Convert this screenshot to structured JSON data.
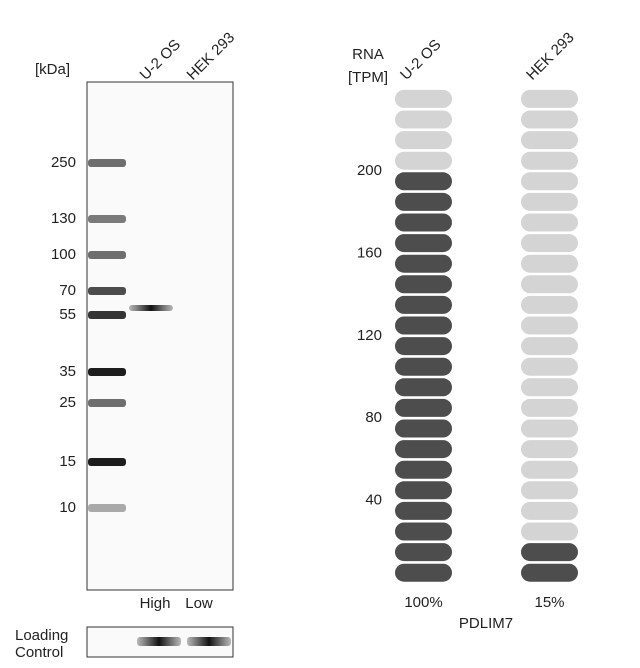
{
  "blot": {
    "unit_label": "[kDa]",
    "lanes": [
      "U-2 OS",
      "HEK 293"
    ],
    "markers": [
      "250",
      "130",
      "100",
      "70",
      "55",
      "35",
      "25",
      "15",
      "10"
    ],
    "lane_levels": [
      "High",
      "Low"
    ],
    "loading_label": [
      "Loading",
      "Control"
    ]
  },
  "rna": {
    "axis_label": [
      "RNA",
      "[TPM]"
    ],
    "ylim": [
      0,
      240
    ],
    "yticks": [
      40,
      80,
      120,
      160,
      200
    ],
    "pill_step": 10,
    "samples": [
      {
        "name": "U-2 OS",
        "value": 200,
        "label": "100%"
      },
      {
        "name": "HEK 293",
        "value": 25,
        "label": "15%"
      }
    ],
    "gene": "PDLIM7"
  }
}
